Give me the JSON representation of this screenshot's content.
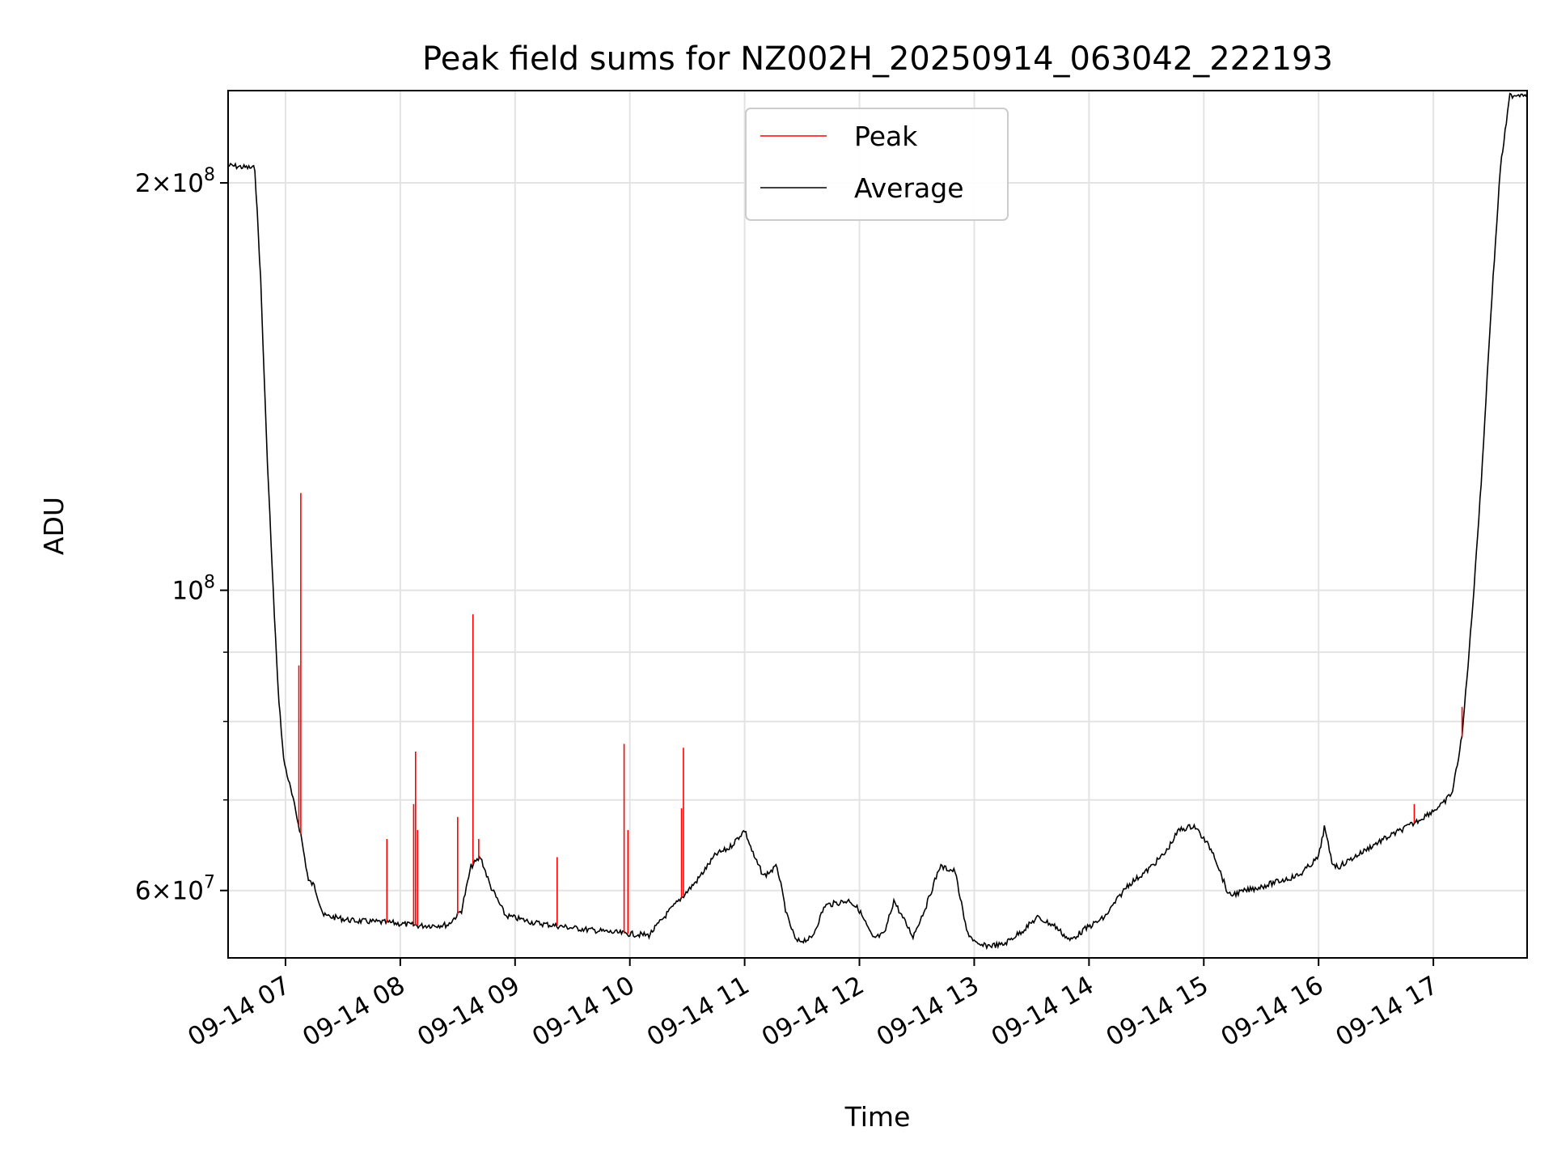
{
  "chart_data": {
    "type": "line",
    "title": "Peak field sums for NZ002H_20250914_063042_222193",
    "xlabel": "Time",
    "ylabel": "ADU",
    "yscale": "log",
    "ylim": [
      53500000,
      234000000
    ],
    "xlim": [
      "2025-09-14 06:30",
      "2025-09-14 17:49"
    ],
    "grid": true,
    "legend_position": "top-center",
    "x_ticks": [
      {
        "t": "2025-09-14 07:00",
        "label": "09-14 07"
      },
      {
        "t": "2025-09-14 08:00",
        "label": "09-14 08"
      },
      {
        "t": "2025-09-14 09:00",
        "label": "09-14 09"
      },
      {
        "t": "2025-09-14 10:00",
        "label": "09-14 10"
      },
      {
        "t": "2025-09-14 11:00",
        "label": "09-14 11"
      },
      {
        "t": "2025-09-14 12:00",
        "label": "09-14 12"
      },
      {
        "t": "2025-09-14 13:00",
        "label": "09-14 13"
      },
      {
        "t": "2025-09-14 14:00",
        "label": "09-14 14"
      },
      {
        "t": "2025-09-14 15:00",
        "label": "09-14 15"
      },
      {
        "t": "2025-09-14 16:00",
        "label": "09-14 16"
      },
      {
        "t": "2025-09-14 17:00",
        "label": "09-14 17"
      }
    ],
    "y_ticks": [
      {
        "value": 60000000,
        "mant": "6",
        "exp": "7"
      },
      {
        "value": 100000000,
        "mant": "",
        "exp": "8"
      },
      {
        "value": 200000000,
        "mant": "2",
        "exp": "8"
      }
    ],
    "y_minor_ticks": [
      70000000,
      80000000,
      90000000
    ],
    "series": [
      {
        "name": "Average",
        "color": "#000000",
        "points": [
          [
            "2025-09-14 06:30",
            206000000
          ],
          [
            "2025-09-14 06:44",
            205000000
          ],
          [
            "2025-09-14 06:47",
            170000000
          ],
          [
            "2025-09-14 06:50",
            130000000
          ],
          [
            "2025-09-14 06:53",
            104000000
          ],
          [
            "2025-09-14 06:56",
            85000000
          ],
          [
            "2025-09-14 06:59",
            75000000
          ],
          [
            "2025-09-14 07:04",
            70000000
          ],
          [
            "2025-09-14 07:08",
            66000000
          ],
          [
            "2025-09-14 07:12",
            61000000
          ],
          [
            "2025-09-14 07:15",
            60500000
          ],
          [
            "2025-09-14 07:20",
            57500000
          ],
          [
            "2025-09-14 07:35",
            57000000
          ],
          [
            "2025-09-14 07:55",
            56800000
          ],
          [
            "2025-09-14 08:10",
            56500000
          ],
          [
            "2025-09-14 08:25",
            56600000
          ],
          [
            "2025-09-14 08:32",
            58000000
          ],
          [
            "2025-09-14 08:37",
            62500000
          ],
          [
            "2025-09-14 08:42",
            63500000
          ],
          [
            "2025-09-14 08:47",
            60500000
          ],
          [
            "2025-09-14 08:55",
            57500000
          ],
          [
            "2025-09-14 09:10",
            56800000
          ],
          [
            "2025-09-14 09:30",
            56300000
          ],
          [
            "2025-09-14 09:55",
            55800000
          ],
          [
            "2025-09-14 10:10",
            55600000
          ],
          [
            "2025-09-14 10:20",
            57800000
          ],
          [
            "2025-09-14 10:35",
            61000000
          ],
          [
            "2025-09-14 10:45",
            63800000
          ],
          [
            "2025-09-14 10:52",
            64500000
          ],
          [
            "2025-09-14 11:00",
            66500000
          ],
          [
            "2025-09-14 11:05",
            63500000
          ],
          [
            "2025-09-14 11:10",
            61500000
          ],
          [
            "2025-09-14 11:17",
            62500000
          ],
          [
            "2025-09-14 11:22",
            57500000
          ],
          [
            "2025-09-14 11:27",
            55000000
          ],
          [
            "2025-09-14 11:35",
            55300000
          ],
          [
            "2025-09-14 11:42",
            58500000
          ],
          [
            "2025-09-14 11:55",
            59000000
          ],
          [
            "2025-09-14 12:00",
            58000000
          ],
          [
            "2025-09-14 12:07",
            55300000
          ],
          [
            "2025-09-14 12:13",
            55700000
          ],
          [
            "2025-09-14 12:18",
            59000000
          ],
          [
            "2025-09-14 12:22",
            57500000
          ],
          [
            "2025-09-14 12:28",
            55500000
          ],
          [
            "2025-09-14 12:35",
            58500000
          ],
          [
            "2025-09-14 12:42",
            62500000
          ],
          [
            "2025-09-14 12:50",
            62000000
          ],
          [
            "2025-09-14 12:56",
            56000000
          ],
          [
            "2025-09-14 13:02",
            54600000
          ],
          [
            "2025-09-14 13:15",
            54700000
          ],
          [
            "2025-09-14 13:25",
            56000000
          ],
          [
            "2025-09-14 13:33",
            57300000
          ],
          [
            "2025-09-14 13:42",
            56500000
          ],
          [
            "2025-09-14 13:50",
            55100000
          ],
          [
            "2025-09-14 13:58",
            56200000
          ],
          [
            "2025-09-14 14:08",
            57300000
          ],
          [
            "2025-09-14 14:20",
            60500000
          ],
          [
            "2025-09-14 14:30",
            62000000
          ],
          [
            "2025-09-14 14:40",
            64000000
          ],
          [
            "2025-09-14 14:47",
            66500000
          ],
          [
            "2025-09-14 14:55",
            67000000
          ],
          [
            "2025-09-14 15:05",
            64000000
          ],
          [
            "2025-09-14 15:13",
            59500000
          ],
          [
            "2025-09-14 15:30",
            60400000
          ],
          [
            "2025-09-14 15:50",
            61600000
          ],
          [
            "2025-09-14 16:00",
            63500000
          ],
          [
            "2025-09-14 16:03",
            66800000
          ],
          [
            "2025-09-14 16:07",
            63000000
          ],
          [
            "2025-09-14 16:10",
            62400000
          ],
          [
            "2025-09-14 16:30",
            65000000
          ],
          [
            "2025-09-14 16:50",
            67300000
          ],
          [
            "2025-09-14 17:05",
            69500000
          ],
          [
            "2025-09-14 17:10",
            71000000
          ],
          [
            "2025-09-14 17:15",
            78000000
          ],
          [
            "2025-09-14 17:20",
            95000000
          ],
          [
            "2025-09-14 17:25",
            120000000
          ],
          [
            "2025-09-14 17:30",
            160000000
          ],
          [
            "2025-09-14 17:35",
            205000000
          ],
          [
            "2025-09-14 17:40",
            232000000
          ],
          [
            "2025-09-14 17:49",
            233000000
          ]
        ]
      },
      {
        "name": "Peak",
        "color": "#ff0000",
        "spikes": [
          [
            "2025-09-14 07:08",
            118000000
          ],
          [
            "2025-09-14 07:07",
            88000000
          ],
          [
            "2025-09-14 07:53",
            65500000
          ],
          [
            "2025-09-14 08:07",
            69500000
          ],
          [
            "2025-09-14 08:08",
            76000000
          ],
          [
            "2025-09-14 08:09",
            66500000
          ],
          [
            "2025-09-14 08:30",
            68000000
          ],
          [
            "2025-09-14 08:38",
            96000000
          ],
          [
            "2025-09-14 08:41",
            65500000
          ],
          [
            "2025-09-14 09:22",
            63500000
          ],
          [
            "2025-09-14 09:57",
            77000000
          ],
          [
            "2025-09-14 09:59",
            66500000
          ],
          [
            "2025-09-14 10:27",
            69000000
          ],
          [
            "2025-09-14 10:28",
            76500000
          ],
          [
            "2025-09-14 16:50",
            69500000
          ],
          [
            "2025-09-14 17:15",
            82000000
          ]
        ]
      }
    ]
  }
}
